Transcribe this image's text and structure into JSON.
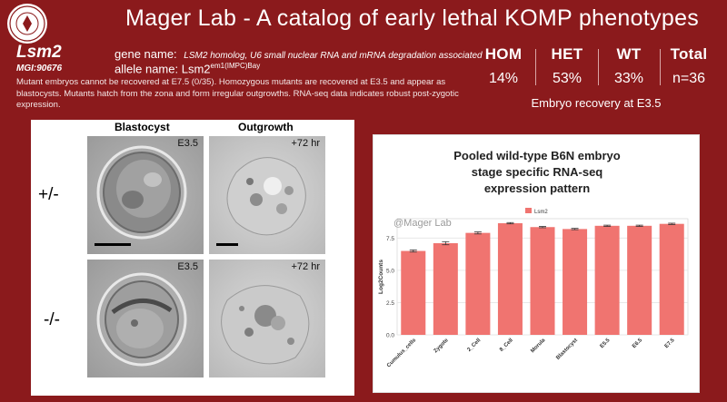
{
  "header": {
    "title": "Mager Lab - A catalog of early lethal KOMP phenotypes"
  },
  "gene": {
    "symbol": "Lsm2",
    "mgi": "MGI:90676",
    "gene_name_label": "gene name:",
    "gene_name_value": "LSM2 homolog, U6 small nuclear RNA and mRNA degradation associated",
    "allele_label": "allele name:",
    "allele_base": "Lsm2",
    "allele_sup": "em1(IMPC)Bay",
    "description": "Mutant embryos cannot be recovered at E7.5 (0/35).  Homozygous mutants are recovered at E3.5 and appear as blastocysts. Mutants hatch from the zona and form irregular outgrowths. RNA-seq data indicates robust post-zygotic expression."
  },
  "stats": {
    "columns": [
      {
        "label": "HOM",
        "value": "14%"
      },
      {
        "label": "HET",
        "value": "53%"
      },
      {
        "label": "WT",
        "value": "33%"
      },
      {
        "label": "Total",
        "value": "n=36"
      }
    ],
    "caption": "Embryo recovery at E3.5"
  },
  "images": {
    "col_blastocyst": "Blastocyst",
    "col_outgrowth": "Outgrowth",
    "row_het": "+/-",
    "row_hom": "-/-",
    "stage_e35": "E3.5",
    "stage_72": "+72 hr"
  },
  "chart_data": {
    "type": "bar",
    "title_lines": [
      "Pooled wild-type B6N embryo",
      "stage specific RNA-seq",
      "expression pattern"
    ],
    "watermark": "@Mager Lab",
    "legend": [
      "Lsm2"
    ],
    "legend_placement": "top-center",
    "ylabel": "Log2Counts",
    "ylim": [
      0,
      9
    ],
    "yticks": [
      0.0,
      2.5,
      5.0,
      7.5
    ],
    "grid": true,
    "bar_color": "#f07470",
    "categories": [
      "Cumulus_cells",
      "Zygote",
      "2_Cell",
      "8_Cell",
      "Morula",
      "Blastocyst",
      "E5.5",
      "E6.5",
      "E7.5"
    ],
    "series": [
      {
        "name": "Lsm2",
        "values": [
          6.5,
          7.1,
          7.9,
          8.65,
          8.35,
          8.2,
          8.45,
          8.45,
          8.6
        ],
        "errors": [
          0.08,
          0.12,
          0.08,
          0.05,
          0.05,
          0.05,
          0.05,
          0.05,
          0.05
        ]
      }
    ]
  }
}
